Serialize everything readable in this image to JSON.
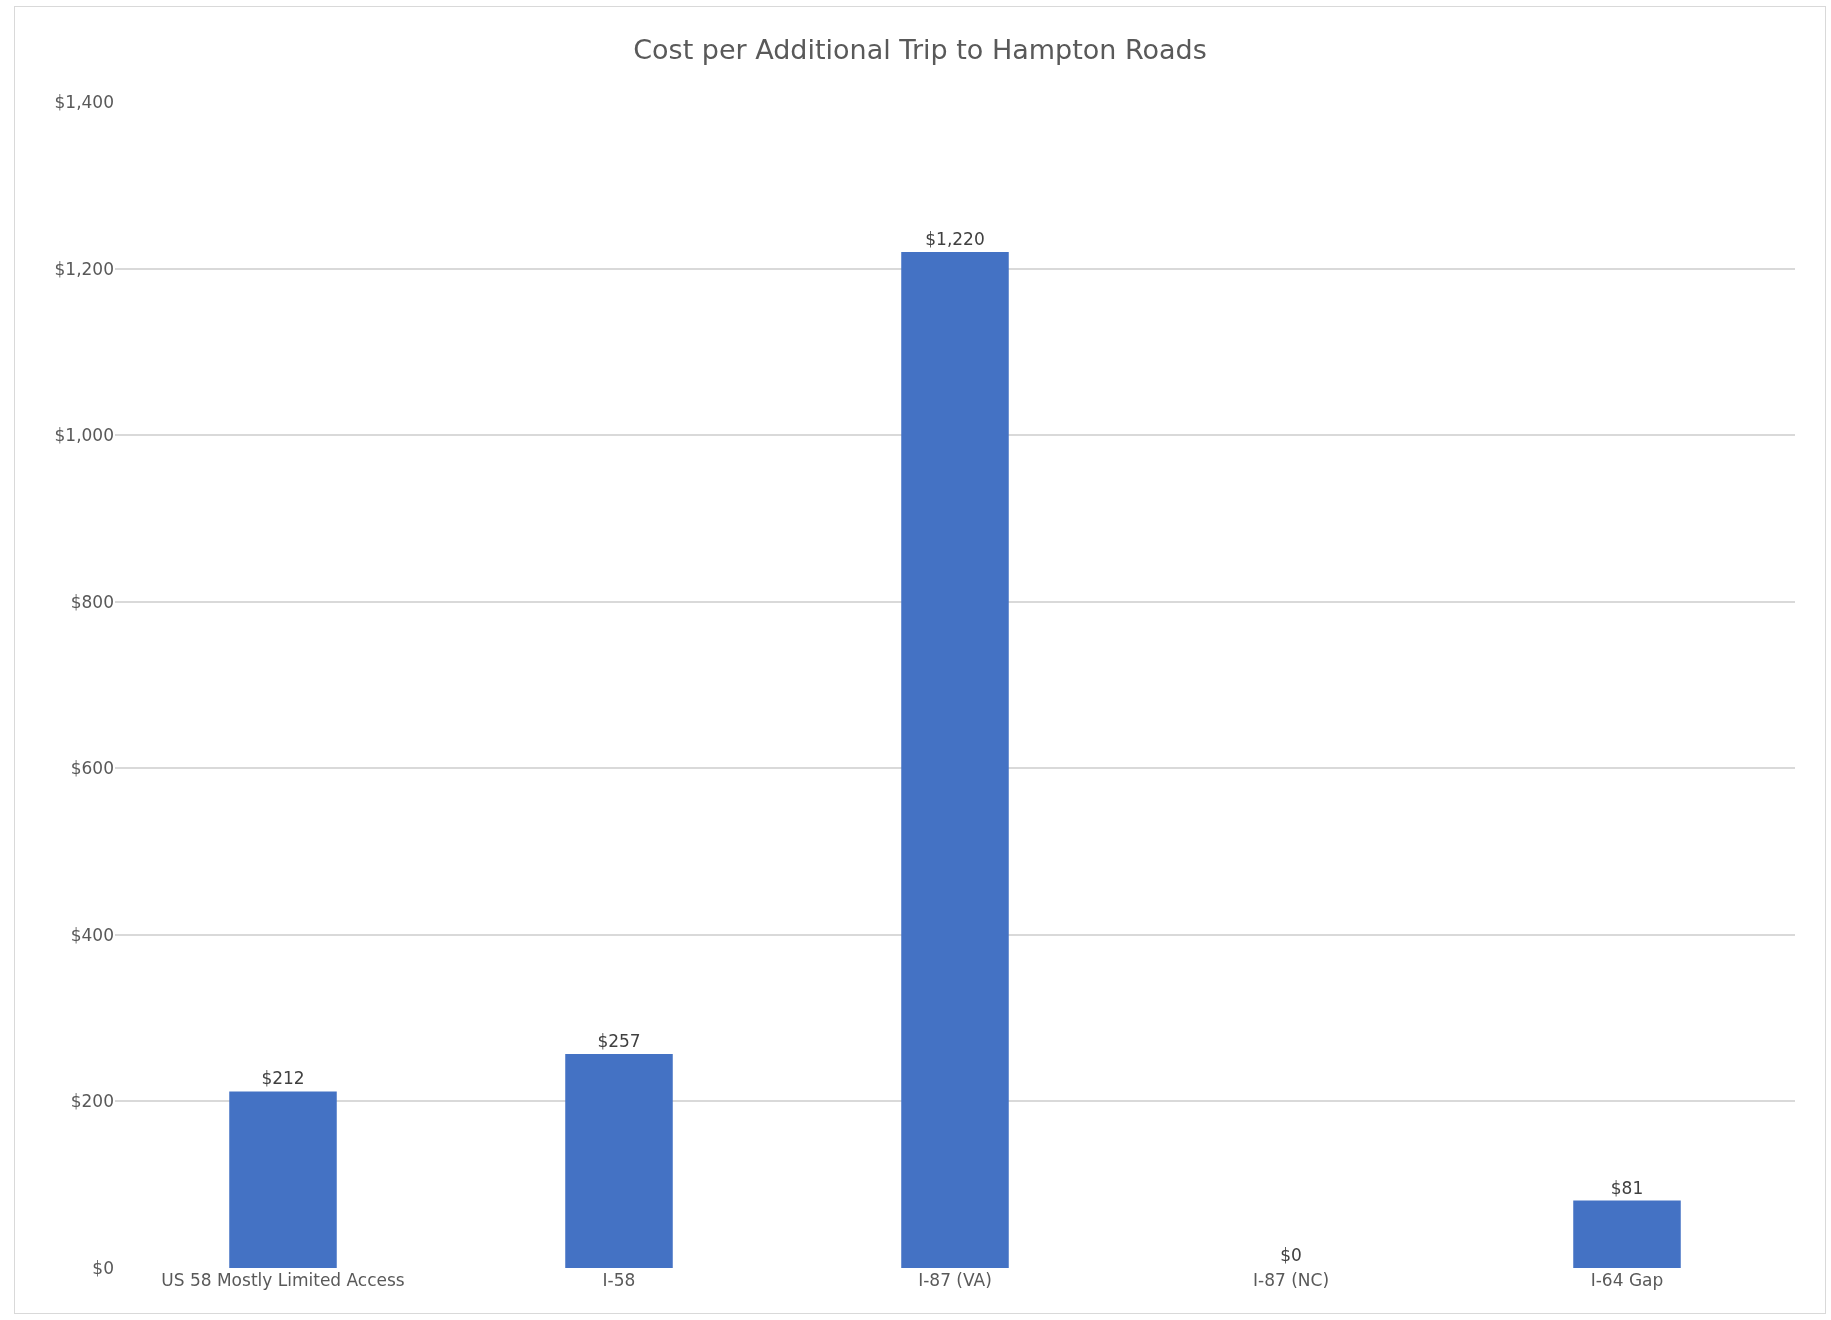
{
  "chart_data": {
    "type": "bar",
    "title": "Cost per Additional Trip to Hampton Roads",
    "categories": [
      "US 58 Mostly Limited Access",
      "I-58",
      "I-87 (VA)",
      "I-87 (NC)",
      "I-64 Gap"
    ],
    "values": [
      212,
      257,
      1220,
      0,
      81
    ],
    "value_labels": [
      "$212",
      "$257",
      "$1,220",
      "$0",
      "$81"
    ],
    "color": "#4472c4",
    "ylim": [
      0,
      1400
    ],
    "yticks": [
      {
        "value": 0,
        "label": "$0"
      },
      {
        "value": 200,
        "label": "$200"
      },
      {
        "value": 400,
        "label": "$400"
      },
      {
        "value": 600,
        "label": "$600"
      },
      {
        "value": 800,
        "label": "$800"
      },
      {
        "value": 1000,
        "label": "$1,000"
      },
      {
        "value": 1200,
        "label": "$1,200"
      },
      {
        "value": 1400,
        "label": "$1,400"
      }
    ],
    "grid": "y",
    "legend": false
  }
}
